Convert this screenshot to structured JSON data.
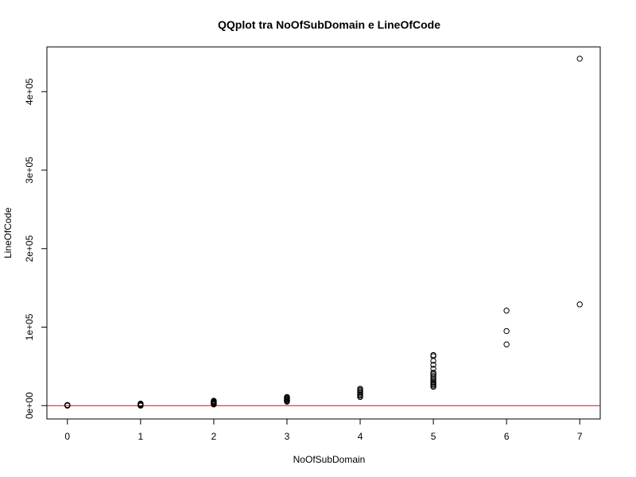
{
  "chart_data": {
    "type": "scatter",
    "title": "QQplot tra NoOfSubDomain e LineOfCode",
    "xlabel": "NoOfSubDomain",
    "ylabel": "LineOfCode",
    "xlim": [
      -0.28,
      7.28
    ],
    "ylim": [
      -17000,
      457000
    ],
    "x_ticks": [
      0,
      1,
      2,
      3,
      4,
      5,
      6,
      7
    ],
    "x_tick_labels": [
      "0",
      "1",
      "2",
      "3",
      "4",
      "5",
      "6",
      "7"
    ],
    "y_ticks": [
      0,
      100000,
      200000,
      300000,
      400000
    ],
    "y_tick_labels": [
      "0e+00",
      "1e+05",
      "2e+05",
      "3e+05",
      "4e+05"
    ],
    "grid": false,
    "reference_line": {
      "y": 0,
      "color": "#ff0000"
    },
    "points": [
      {
        "x": 0,
        "y": 0
      },
      {
        "x": 0,
        "y": 200
      },
      {
        "x": 0,
        "y": 400
      },
      {
        "x": 0,
        "y": 600
      },
      {
        "x": 0,
        "y": 800
      },
      {
        "x": 1,
        "y": 0
      },
      {
        "x": 1,
        "y": 300
      },
      {
        "x": 1,
        "y": 700
      },
      {
        "x": 1,
        "y": 1200
      },
      {
        "x": 1,
        "y": 1800
      },
      {
        "x": 1,
        "y": 2500
      },
      {
        "x": 2,
        "y": 1500
      },
      {
        "x": 2,
        "y": 2200
      },
      {
        "x": 2,
        "y": 3000
      },
      {
        "x": 2,
        "y": 3800
      },
      {
        "x": 2,
        "y": 4600
      },
      {
        "x": 2,
        "y": 5400
      },
      {
        "x": 2,
        "y": 6200
      },
      {
        "x": 3,
        "y": 5000
      },
      {
        "x": 3,
        "y": 6000
      },
      {
        "x": 3,
        "y": 7000
      },
      {
        "x": 3,
        "y": 8000
      },
      {
        "x": 3,
        "y": 9000
      },
      {
        "x": 3,
        "y": 10000
      },
      {
        "x": 3,
        "y": 11000
      },
      {
        "x": 4,
        "y": 11000
      },
      {
        "x": 4,
        "y": 12500
      },
      {
        "x": 4,
        "y": 14000
      },
      {
        "x": 4,
        "y": 15500
      },
      {
        "x": 4,
        "y": 17000
      },
      {
        "x": 4,
        "y": 18500
      },
      {
        "x": 4,
        "y": 20000
      },
      {
        "x": 4,
        "y": 21500
      },
      {
        "x": 5,
        "y": 24000
      },
      {
        "x": 5,
        "y": 25500
      },
      {
        "x": 5,
        "y": 27000
      },
      {
        "x": 5,
        "y": 28500
      },
      {
        "x": 5,
        "y": 30000
      },
      {
        "x": 5,
        "y": 32000
      },
      {
        "x": 5,
        "y": 34000
      },
      {
        "x": 5,
        "y": 36000
      },
      {
        "x": 5,
        "y": 38000
      },
      {
        "x": 5,
        "y": 40000
      },
      {
        "x": 5,
        "y": 42000
      },
      {
        "x": 5,
        "y": 47000
      },
      {
        "x": 5,
        "y": 52000
      },
      {
        "x": 5,
        "y": 57000
      },
      {
        "x": 5,
        "y": 63000
      },
      {
        "x": 5,
        "y": 64500
      },
      {
        "x": 6,
        "y": 78000
      },
      {
        "x": 6,
        "y": 95000
      },
      {
        "x": 6,
        "y": 121000
      },
      {
        "x": 7,
        "y": 129000
      },
      {
        "x": 7,
        "y": 442000
      }
    ]
  }
}
